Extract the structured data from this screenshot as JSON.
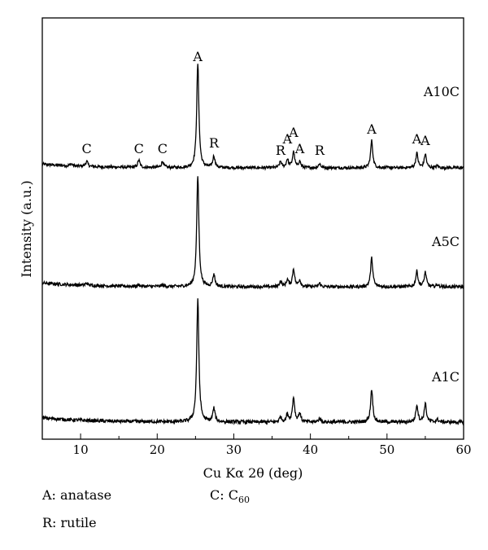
{
  "chart_data": {
    "type": "line",
    "xlabel": "Cu Kα 2θ (deg)",
    "ylabel": "Intensity (a.u.)",
    "xlim": [
      5,
      60
    ],
    "x_ticks": [
      10,
      20,
      30,
      40,
      50,
      60
    ],
    "y_ticks_shown": false,
    "grid": false,
    "series": [
      {
        "name": "A10C",
        "peaks": [
          {
            "x": 8.8,
            "h": 0.02
          },
          {
            "x": 10.8,
            "h": 0.05
          },
          {
            "x": 17.6,
            "h": 0.07
          },
          {
            "x": 20.7,
            "h": 0.06
          },
          {
            "x": 25.3,
            "h": 1.0
          },
          {
            "x": 27.4,
            "h": 0.11
          },
          {
            "x": 36.1,
            "h": 0.06
          },
          {
            "x": 37.0,
            "h": 0.08
          },
          {
            "x": 37.8,
            "h": 0.15
          },
          {
            "x": 38.6,
            "h": 0.06
          },
          {
            "x": 41.2,
            "h": 0.04
          },
          {
            "x": 48.0,
            "h": 0.26
          },
          {
            "x": 53.9,
            "h": 0.14
          },
          {
            "x": 55.0,
            "h": 0.13
          },
          {
            "x": 56.6,
            "h": 0.02
          }
        ]
      },
      {
        "name": "A5C",
        "peaks": [
          {
            "x": 10.8,
            "h": 0.02
          },
          {
            "x": 17.6,
            "h": 0.015
          },
          {
            "x": 20.7,
            "h": 0.015
          },
          {
            "x": 25.3,
            "h": 1.0
          },
          {
            "x": 27.4,
            "h": 0.11
          },
          {
            "x": 36.1,
            "h": 0.05
          },
          {
            "x": 37.0,
            "h": 0.06
          },
          {
            "x": 37.8,
            "h": 0.16
          },
          {
            "x": 38.6,
            "h": 0.06
          },
          {
            "x": 41.2,
            "h": 0.03
          },
          {
            "x": 48.0,
            "h": 0.26
          },
          {
            "x": 53.9,
            "h": 0.14
          },
          {
            "x": 55.0,
            "h": 0.13
          },
          {
            "x": 56.6,
            "h": 0.02
          }
        ]
      },
      {
        "name": "A1C",
        "peaks": [
          {
            "x": 25.3,
            "h": 1.0
          },
          {
            "x": 27.4,
            "h": 0.11
          },
          {
            "x": 36.1,
            "h": 0.04
          },
          {
            "x": 37.0,
            "h": 0.06
          },
          {
            "x": 37.8,
            "h": 0.2
          },
          {
            "x": 38.6,
            "h": 0.07
          },
          {
            "x": 41.2,
            "h": 0.03
          },
          {
            "x": 48.0,
            "h": 0.27
          },
          {
            "x": 53.9,
            "h": 0.14
          },
          {
            "x": 55.0,
            "h": 0.15
          },
          {
            "x": 56.6,
            "h": 0.02
          }
        ]
      }
    ],
    "annotations": [
      {
        "text": "C",
        "x": 10.8
      },
      {
        "text": "C",
        "x": 17.6
      },
      {
        "text": "C",
        "x": 20.7
      },
      {
        "text": "A",
        "x": 25.3
      },
      {
        "text": "R",
        "x": 27.4
      },
      {
        "text": "R",
        "x": 36.1
      },
      {
        "text": "A",
        "x": 37.0
      },
      {
        "text": "A",
        "x": 37.8
      },
      {
        "text": "A",
        "x": 38.6
      },
      {
        "text": "R",
        "x": 41.2
      },
      {
        "text": "A",
        "x": 48.0
      },
      {
        "text": "A",
        "x": 53.9
      },
      {
        "text": "A",
        "x": 55.0
      }
    ]
  },
  "legend": {
    "anatase": "A: anatase",
    "rutile": "R: rutile",
    "c60_prefix": "C: C",
    "c60_sub": "60"
  }
}
